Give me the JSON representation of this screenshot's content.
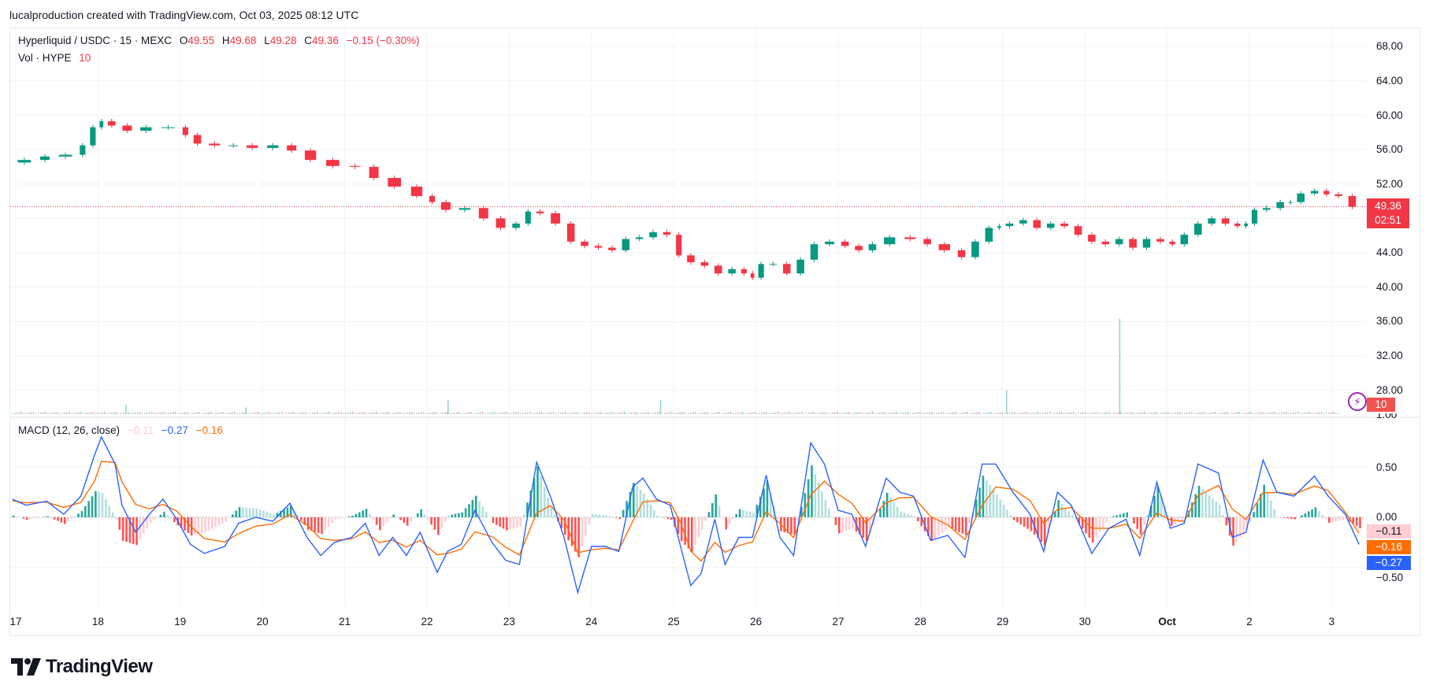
{
  "header": {
    "credit": "lucalproduction created with TradingView.com, Oct 03, 2025 08:12 UTC"
  },
  "legend": {
    "symbol": "Hyperliquid / USDC · 15 · MEXC",
    "o_label": "O",
    "o": "49.55",
    "h_label": "H",
    "h": "49.68",
    "l_label": "L",
    "l": "49.28",
    "c_label": "C",
    "c": "49.36",
    "change": "−0.15 (−0.30%)",
    "vol_label": "Vol · HYPE",
    "vol": "10",
    "macd_label": "MACD (12, 26, close)",
    "macd_hist": "−0.11",
    "macd_line": "−0.27",
    "macd_signal": "−0.16"
  },
  "price_axis": {
    "ticks": [
      "68.00",
      "64.00",
      "60.00",
      "56.00",
      "52.00",
      "44.00",
      "40.00",
      "36.00",
      "32.00",
      "28.00"
    ],
    "current_price": "49.36",
    "countdown": "02:51",
    "volume_tag": "10"
  },
  "macd_axis": {
    "ticks": [
      "1.00",
      "0.50",
      "0.00",
      "−0.50"
    ],
    "hist_tag": "−0.11",
    "signal_tag": "−0.16",
    "macd_tag": "−0.27"
  },
  "time_axis": {
    "ticks": [
      "17",
      "18",
      "19",
      "20",
      "21",
      "22",
      "23",
      "24",
      "25",
      "26",
      "27",
      "28",
      "29",
      "30",
      "Oct",
      "2",
      "3"
    ]
  },
  "logo": {
    "text": "TradingView",
    "icon": "tradingview-logo-icon"
  },
  "colors": {
    "up": "#089981",
    "down": "#f23645",
    "macd": "#2962ff",
    "signal": "#ff6d00",
    "hist_up": "#26a69a",
    "hist_up_light": "#b2dfdb",
    "hist_down": "#ff5252",
    "hist_down_light": "#ffcdd2",
    "grid": "#f0f3fa"
  },
  "chart_data": [
    {
      "type": "candlestick",
      "ylim": [
        26,
        70
      ],
      "grid": true,
      "current_price": 49.36,
      "close_series": [
        [
          "09-16 23:00",
          54.5
        ],
        [
          "09-17 06:00",
          54.8
        ],
        [
          "09-17 11:00",
          55.2
        ],
        [
          "09-17 18:00",
          55.4
        ],
        [
          "09-17 21:00",
          56.5
        ],
        [
          "09-18 00:00",
          58.6
        ],
        [
          "09-18 02:00",
          59.3
        ],
        [
          "09-18 06:00",
          58.8
        ],
        [
          "09-18 11:00",
          58.2
        ],
        [
          "09-18 17:00",
          58.6
        ],
        [
          "09-19 00:00",
          58.6
        ],
        [
          "09-19 03:00",
          57.7
        ],
        [
          "09-19 07:00",
          56.7
        ],
        [
          "09-19 13:00",
          56.5
        ],
        [
          "09-19 18:00",
          56.5
        ],
        [
          "09-20 00:00",
          56.2
        ],
        [
          "09-20 06:00",
          56.5
        ],
        [
          "09-20 11:00",
          55.9
        ],
        [
          "09-20 17:00",
          54.8
        ],
        [
          "09-21 00:00",
          54.1
        ],
        [
          "09-21 06:00",
          54.0
        ],
        [
          "09-21 11:00",
          52.7
        ],
        [
          "09-21 18:00",
          51.7
        ],
        [
          "09-22 00:00",
          50.6
        ],
        [
          "09-22 03:00",
          49.9
        ],
        [
          "09-22 08:00",
          49.0
        ],
        [
          "09-22 14:00",
          49.2
        ],
        [
          "09-22 19:00",
          48.0
        ],
        [
          "09-23 00:00",
          46.9
        ],
        [
          "09-23 04:00",
          47.4
        ],
        [
          "09-23 07:00",
          48.8
        ],
        [
          "09-23 11:00",
          48.6
        ],
        [
          "09-23 16:00",
          47.4
        ],
        [
          "09-23 20:00",
          45.3
        ],
        [
          "09-24 00:00",
          44.8
        ],
        [
          "09-24 04:00",
          44.6
        ],
        [
          "09-24 08:00",
          44.3
        ],
        [
          "09-24 12:00",
          45.6
        ],
        [
          "09-24 16:00",
          45.8
        ],
        [
          "09-24 20:00",
          46.4
        ],
        [
          "09-25 00:00",
          46.1
        ],
        [
          "09-25 03:00",
          43.7
        ],
        [
          "09-25 07:00",
          42.9
        ],
        [
          "09-25 11:00",
          42.5
        ],
        [
          "09-25 15:00",
          41.6
        ],
        [
          "09-25 19:00",
          42.1
        ],
        [
          "09-25 22:00",
          41.6
        ],
        [
          "09-26 00:00",
          41.1
        ],
        [
          "09-26 03:00",
          42.7
        ],
        [
          "09-26 07:00",
          42.7
        ],
        [
          "09-26 11:00",
          41.6
        ],
        [
          "09-26 15:00",
          43.2
        ],
        [
          "09-26 19:00",
          45.0
        ],
        [
          "09-27 00:00",
          45.3
        ],
        [
          "09-27 04:00",
          44.8
        ],
        [
          "09-27 08:00",
          44.3
        ],
        [
          "09-27 12:00",
          45.0
        ],
        [
          "09-27 18:00",
          45.8
        ],
        [
          "09-28 00:00",
          45.6
        ],
        [
          "09-28 04:00",
          45.0
        ],
        [
          "09-28 10:00",
          44.3
        ],
        [
          "09-28 14:00",
          43.5
        ],
        [
          "09-28 18:00",
          45.3
        ],
        [
          "09-28 22:00",
          46.9
        ],
        [
          "09-29 00:00",
          47.1
        ],
        [
          "09-29 04:00",
          47.4
        ],
        [
          "09-29 08:00",
          47.8
        ],
        [
          "09-29 12:00",
          46.9
        ],
        [
          "09-29 16:00",
          47.4
        ],
        [
          "09-29 20:00",
          47.1
        ],
        [
          "09-30 00:00",
          46.1
        ],
        [
          "09-30 04:00",
          45.3
        ],
        [
          "09-30 08:00",
          45.0
        ],
        [
          "09-30 12:00",
          45.6
        ],
        [
          "09-30 16:00",
          44.6
        ],
        [
          "09-30 20:00",
          45.6
        ],
        [
          "10-01 00:00",
          45.3
        ],
        [
          "10-01 03:00",
          45.0
        ],
        [
          "10-01 07:00",
          46.1
        ],
        [
          "10-01 11:00",
          47.4
        ],
        [
          "10-01 15:00",
          48.0
        ],
        [
          "10-01 19:00",
          47.4
        ],
        [
          "10-01 22:00",
          47.1
        ],
        [
          "10-02 00:00",
          47.4
        ],
        [
          "10-02 03:00",
          49.0
        ],
        [
          "10-02 07:00",
          49.2
        ],
        [
          "10-02 11:00",
          49.9
        ],
        [
          "10-02 13:00",
          49.9
        ],
        [
          "10-02 17:00",
          50.9
        ],
        [
          "10-02 21:00",
          51.2
        ],
        [
          "10-03 00:00",
          50.8
        ],
        [
          "10-03 04:00",
          50.6
        ],
        [
          "10-03 08:00",
          49.36
        ]
      ],
      "volume_relative": [
        [
          "09-18 08:00",
          0.1
        ],
        [
          "09-19 19:00",
          0.07
        ],
        [
          "09-22 06:00",
          0.15
        ],
        [
          "09-24 20:00",
          0.15
        ],
        [
          "09-29 01:00",
          0.25
        ],
        [
          "09-30 10:00",
          1.0
        ]
      ]
    },
    {
      "type": "line",
      "ylim": [
        -0.95,
        1.05
      ],
      "grid": true,
      "series": [
        {
          "points": [
            [
              "09-16 23:00",
              0.18
            ],
            [
              "09-17 03:00",
              0.12
            ],
            [
              "09-17 09:00",
              0.16
            ],
            [
              "09-17 14:00",
              0.03
            ],
            [
              "09-17 19:00",
              0.21
            ],
            [
              "09-17 23:00",
              0.62
            ],
            [
              "09-18 01:00",
              0.8
            ],
            [
              "09-18 05:00",
              0.53
            ],
            [
              "09-18 07:00",
              0.12
            ],
            [
              "09-18 11:00",
              -0.15
            ],
            [
              "09-18 15:00",
              0.03
            ],
            [
              "09-18 19:00",
              0.18
            ],
            [
              "09-18 23:00",
              -0.02
            ],
            [
              "09-19 03:00",
              -0.27
            ],
            [
              "09-19 07:00",
              -0.36
            ],
            [
              "09-19 13:00",
              -0.29
            ],
            [
              "09-19 17:00",
              -0.06
            ],
            [
              "09-19 22:00",
              0
            ],
            [
              "09-20 03:00",
              -0.04
            ],
            [
              "09-20 08:00",
              0.14
            ],
            [
              "09-20 13:00",
              -0.2
            ],
            [
              "09-20 17:00",
              -0.38
            ],
            [
              "09-20 21:00",
              -0.25
            ],
            [
              "09-21 02:00",
              -0.2
            ],
            [
              "09-21 06:00",
              -0.06
            ],
            [
              "09-21 10:00",
              -0.38
            ],
            [
              "09-21 14:00",
              -0.2
            ],
            [
              "09-21 18:00",
              -0.38
            ],
            [
              "09-21 22:00",
              -0.15
            ],
            [
              "09-22 03:00",
              -0.55
            ],
            [
              "09-22 06:00",
              -0.34
            ],
            [
              "09-22 10:00",
              -0.27
            ],
            [
              "09-22 14:00",
              0.07
            ],
            [
              "09-22 19:00",
              -0.25
            ],
            [
              "09-22 23:00",
              -0.43
            ],
            [
              "09-23 03:00",
              -0.47
            ],
            [
              "09-23 08:00",
              0.55
            ],
            [
              "09-23 12:00",
              0.21
            ],
            [
              "09-23 16:00",
              -0.2
            ],
            [
              "09-23 20:00",
              -0.75
            ],
            [
              "09-24 00:00",
              -0.29
            ],
            [
              "09-24 04:00",
              -0.29
            ],
            [
              "09-24 08:00",
              -0.34
            ],
            [
              "09-24 12:00",
              0.3
            ],
            [
              "09-24 15:00",
              0.39
            ],
            [
              "09-24 19:00",
              0.18
            ],
            [
              "09-24 23:00",
              0.12
            ],
            [
              "09-25 02:00",
              -0.29
            ],
            [
              "09-25 05:00",
              -0.68
            ],
            [
              "09-25 08:00",
              -0.56
            ],
            [
              "09-25 12:00",
              -0.02
            ],
            [
              "09-25 15:00",
              -0.47
            ],
            [
              "09-25 19:00",
              -0.2
            ],
            [
              "09-25 23:00",
              -0.2
            ],
            [
              "09-26 03:00",
              0.42
            ],
            [
              "09-26 07:00",
              -0.2
            ],
            [
              "09-26 11:00",
              -0.38
            ],
            [
              "09-26 16:00",
              0.74
            ],
            [
              "09-26 20:00",
              0.53
            ],
            [
              "09-27 00:00",
              0.07
            ],
            [
              "09-27 04:00",
              0.03
            ],
            [
              "09-27 08:00",
              -0.29
            ],
            [
              "09-27 14:00",
              0.39
            ],
            [
              "09-27 18:00",
              0.25
            ],
            [
              "09-27 22:00",
              0.21
            ],
            [
              "09-28 03:00",
              -0.23
            ],
            [
              "09-28 08:00",
              -0.18
            ],
            [
              "09-28 13:00",
              -0.4
            ],
            [
              "09-28 18:00",
              0.53
            ],
            [
              "09-28 22:00",
              0.53
            ],
            [
              "09-29 03:00",
              0.25
            ],
            [
              "09-29 08:00",
              0.03
            ],
            [
              "09-29 12:00",
              -0.34
            ],
            [
              "09-29 16:00",
              0.25
            ],
            [
              "09-29 20:00",
              0.12
            ],
            [
              "09-30 02:00",
              -0.36
            ],
            [
              "09-30 07:00",
              -0.11
            ],
            [
              "09-30 12:00",
              -0.02
            ],
            [
              "09-30 16:00",
              -0.38
            ],
            [
              "09-30 21:00",
              0.35
            ],
            [
              "10-01 01:00",
              -0.11
            ],
            [
              "10-01 05:00",
              -0.06
            ],
            [
              "10-01 09:00",
              0.53
            ],
            [
              "10-01 15:00",
              0.44
            ],
            [
              "10-01 19:00",
              -0.2
            ],
            [
              "10-01 23:00",
              -0.15
            ],
            [
              "10-02 04:00",
              0.57
            ],
            [
              "10-02 08:00",
              0.25
            ],
            [
              "10-02 13:00",
              0.21
            ],
            [
              "10-02 19:00",
              0.41
            ],
            [
              "10-02 23:00",
              0.21
            ],
            [
              "10-03 04:00",
              0.03
            ],
            [
              "10-03 08:00",
              -0.27
            ]
          ]
        },
        {
          "values": [
            0.164,
            0.144,
            0.151,
            0.097,
            0.148,
            0.36,
            0.558,
            0.545,
            0.354,
            0.127,
            0.084,
            0.127,
            0.061,
            -0.088,
            -0.21,
            -0.246,
            -0.162,
            -0.089,
            -0.067,
            0.026,
            -0.076,
            -0.213,
            -0.23,
            -0.216,
            -0.146,
            -0.251,
            -0.228,
            -0.296,
            -0.23,
            -0.374,
            -0.359,
            -0.319,
            -0.144,
            -0.192,
            -0.299,
            -0.376,
            0.041,
            0.117,
            -0.026,
            -0.352,
            -0.324,
            -0.309,
            -0.323,
            -0.043,
            0.152,
            0.165,
            0.145,
            -0.051,
            -0.334,
            -0.436,
            -0.249,
            -0.349,
            -0.282,
            -0.245,
            0.054,
            -0.06,
            -0.204,
            0.221,
            0.36,
            0.23,
            0.14,
            -0.054,
            0.146,
            0.193,
            0.2,
            0.007,
            -0.077,
            -0.222,
            0.116,
            0.302,
            0.279,
            0.167,
            -0.061,
            0.079,
            0.097,
            -0.109,
            -0.11,
            -0.069,
            -0.209,
            0.043,
            -0.026,
            -0.041,
            0.216,
            0.317,
            0.084,
            -0.021,
            0.245,
            0.247,
            0.23,
            0.311,
            0.266,
            0.05,
            -0.16
          ]
        }
      ]
    }
  ]
}
